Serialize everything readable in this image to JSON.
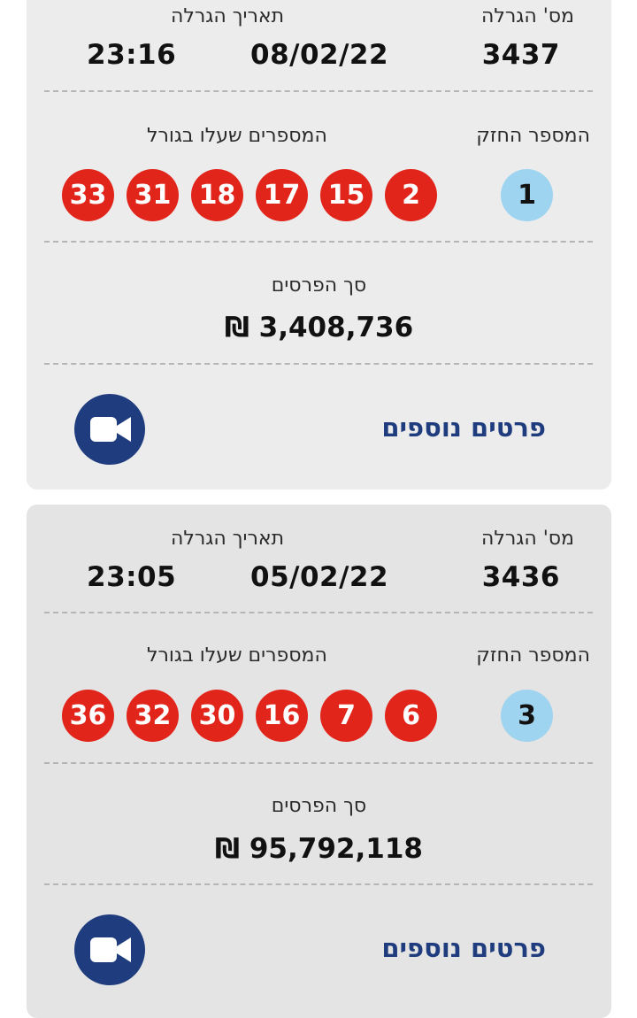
{
  "labels": {
    "draw_number": "מס' הגרלה",
    "draw_date": "תאריך הגרלה",
    "strong_number": "המספר החזק",
    "drawn_numbers": "המספרים שעלו בגורל",
    "prize_total": "סך הפרסים",
    "more_details": "פרטים נוספים"
  },
  "icons": {
    "video": "video-camera-icon"
  },
  "colors": {
    "ball": "#e1251b",
    "strong_ball": "#9fd4f0",
    "accent": "#1f3c7e"
  },
  "draws": [
    {
      "number": "3437",
      "date": "08/02/22",
      "time": "23:16",
      "strong": "1",
      "balls": [
        "2",
        "15",
        "17",
        "18",
        "31",
        "33"
      ],
      "prize": "₪ 3,408,736"
    },
    {
      "number": "3436",
      "date": "05/02/22",
      "time": "23:05",
      "strong": "3",
      "balls": [
        "6",
        "7",
        "16",
        "30",
        "32",
        "36"
      ],
      "prize": "₪ 95,792,118"
    }
  ]
}
